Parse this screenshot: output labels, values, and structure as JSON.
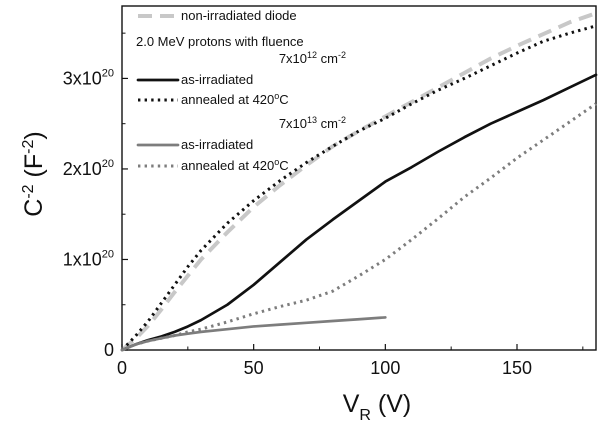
{
  "chart_data": {
    "type": "line",
    "xlabel": {
      "main": "V",
      "sub": "R",
      "unit": "(V)"
    },
    "ylabel": {
      "main": "C",
      "sup1": "-2",
      "paren_open": "(F",
      "sup2": "-2",
      "paren_close": ")"
    },
    "xlim": [
      0,
      180
    ],
    "ylim": [
      0,
      3.8e+20
    ],
    "x_ticks": [
      {
        "value": 0,
        "label": "0"
      },
      {
        "value": 50,
        "label": "50"
      },
      {
        "value": 100,
        "label": "100"
      },
      {
        "value": 150,
        "label": "150"
      }
    ],
    "y_ticks": [
      {
        "value": 0,
        "base": "0",
        "exp": ""
      },
      {
        "value": 1e+20,
        "base": "1x10",
        "exp": "20"
      },
      {
        "value": 2e+20,
        "base": "2x10",
        "exp": "20"
      },
      {
        "value": 3e+20,
        "base": "3x10",
        "exp": "20"
      }
    ],
    "legend": {
      "position": "top-left",
      "entries": [
        {
          "type": "series",
          "series_index": 0,
          "text": "non-irradiated diode"
        },
        {
          "type": "text",
          "text": "2.0 MeV protons with fluence"
        },
        {
          "type": "fluence",
          "base": "7x10",
          "exp": "12",
          "unit": " cm",
          "unit_exp": "-2"
        },
        {
          "type": "series",
          "series_index": 1,
          "text": "as-irradiated"
        },
        {
          "type": "series",
          "series_index": 2,
          "text": "annealed at 420",
          "sup": "o",
          "suffix": "C"
        },
        {
          "type": "fluence",
          "base": "7x10",
          "exp": "13",
          "unit": " cm",
          "unit_exp": "-2"
        },
        {
          "type": "series",
          "series_index": 3,
          "text": "as-irradiated"
        },
        {
          "type": "series",
          "series_index": 4,
          "text": "annealed at 420",
          "sup": "o",
          "suffix": "C"
        }
      ]
    },
    "series": [
      {
        "name": "non-irradiated diode",
        "color": "#c8c8c8",
        "style": "dashed",
        "x": [
          0,
          5,
          10,
          15,
          20,
          25,
          30,
          40,
          50,
          60,
          70,
          80,
          90,
          100,
          110,
          120,
          130,
          140,
          150,
          160,
          170,
          180
        ],
        "y": [
          0.0,
          1.2e+19,
          2.7e+19,
          4.5e+19,
          6.4e+19,
          8.2e+19,
          1e+20,
          1.3e+20,
          1.58e+20,
          1.82e+20,
          2.04e+20,
          2.25e+20,
          2.42e+20,
          2.58e+20,
          2.74e+20,
          2.9e+20,
          3.06e+20,
          3.22e+20,
          3.36e+20,
          3.49e+20,
          3.62e+20,
          3.72e+20
        ]
      },
      {
        "name": "as-irradiated",
        "color": "#111111",
        "style": "solid",
        "x": [
          0,
          5,
          10,
          15,
          20,
          25,
          30,
          40,
          50,
          60,
          70,
          80,
          90,
          100,
          110,
          120,
          130,
          140,
          150,
          160,
          170,
          180
        ],
        "y": [
          0.0,
          6e+18,
          1.1e+19,
          1.5e+19,
          2e+19,
          2.6e+19,
          3.3e+19,
          5e+19,
          7.2e+19,
          9.7e+19,
          1.22e+20,
          1.44e+20,
          1.65e+20,
          1.86e+20,
          2.02e+20,
          2.19e+20,
          2.35e+20,
          2.5e+20,
          2.63e+20,
          2.76e+20,
          2.9e+20,
          3.04e+20
        ]
      },
      {
        "name": "annealed at 420°C",
        "color": "#111111",
        "style": "dotted",
        "x": [
          0,
          5,
          10,
          15,
          20,
          25,
          30,
          40,
          50,
          60,
          70,
          80,
          90,
          100,
          110,
          120,
          130,
          140,
          150,
          160,
          170,
          180
        ],
        "y": [
          0.0,
          1.5e+19,
          3.2e+19,
          5.2e+19,
          7.2e+19,
          9.2e+19,
          1.1e+20,
          1.4e+20,
          1.65e+20,
          1.87e+20,
          2.07e+20,
          2.25e+20,
          2.42e+20,
          2.56e+20,
          2.72e+20,
          2.87e+20,
          3e+20,
          3.14e+20,
          3.28e+20,
          3.41e+20,
          3.5e+20,
          3.58e+20
        ]
      },
      {
        "name": "as-irradiated",
        "color": "#7d7d7d",
        "style": "solid",
        "x": [
          0,
          5,
          10,
          15,
          20,
          25,
          30,
          40,
          50,
          60,
          70,
          80,
          90,
          100
        ],
        "y": [
          0.0,
          6e+18,
          1e+19,
          1.3e+19,
          1.6e+19,
          1.8e+19,
          2e+19,
          2.3e+19,
          2.6e+19,
          2.8e+19,
          3e+19,
          3.2e+19,
          3.4e+19,
          3.6e+19
        ]
      },
      {
        "name": "annealed at 420°C",
        "color": "#7d7d7d",
        "style": "dotted",
        "x": [
          0,
          5,
          10,
          15,
          20,
          25,
          30,
          40,
          50,
          60,
          70,
          80,
          90,
          100,
          110,
          120,
          130,
          140,
          150,
          160,
          170,
          180
        ],
        "y": [
          0.0,
          6e+18,
          1e+19,
          1.3e+19,
          1.6e+19,
          2e+19,
          2.3e+19,
          3.1e+19,
          4e+19,
          4.8e+19,
          5.5e+19,
          6.5e+19,
          8.2e+19,
          1e+20,
          1.22e+20,
          1.45e+20,
          1.69e+20,
          1.9e+20,
          2.12e+20,
          2.32e+20,
          2.52e+20,
          2.72e+20
        ]
      }
    ]
  }
}
